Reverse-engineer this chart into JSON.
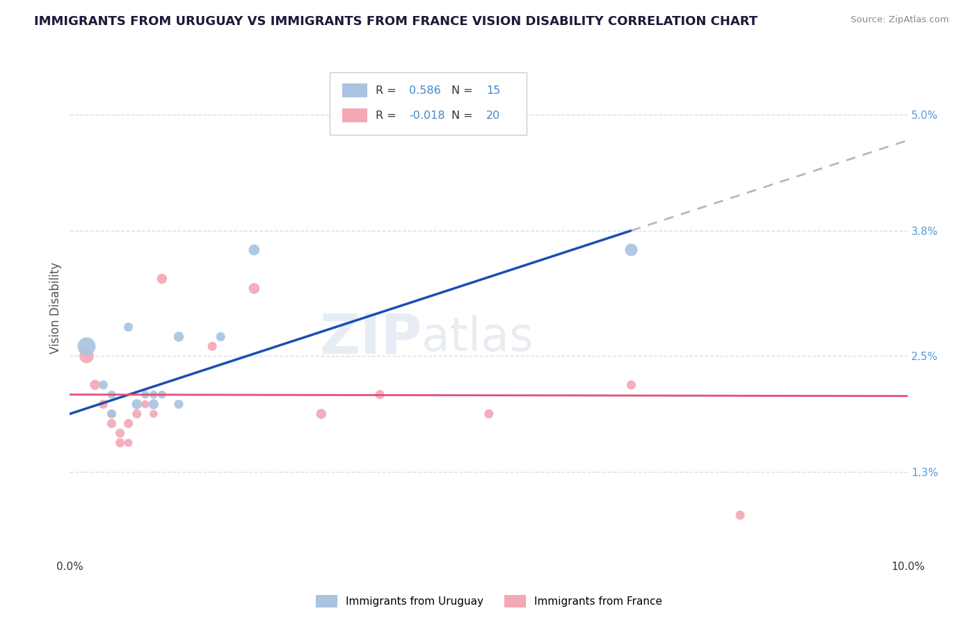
{
  "title": "IMMIGRANTS FROM URUGUAY VS IMMIGRANTS FROM FRANCE VISION DISABILITY CORRELATION CHART",
  "source": "Source: ZipAtlas.com",
  "ylabel": "Vision Disability",
  "xlim": [
    0.0,
    0.1
  ],
  "ylim": [
    0.004,
    0.056
  ],
  "yticks": [
    0.013,
    0.025,
    0.038,
    0.05
  ],
  "ytick_labels": [
    "1.3%",
    "2.5%",
    "3.8%",
    "5.0%"
  ],
  "xticks": [
    0.0,
    0.02,
    0.04,
    0.06,
    0.08,
    0.1
  ],
  "xtick_labels": [
    "0.0%",
    "",
    "",
    "",
    "",
    "10.0%"
  ],
  "watermark_zip": "ZIP",
  "watermark_atlas": "atlas",
  "uruguay_R": 0.586,
  "uruguay_N": 15,
  "france_R": -0.018,
  "france_N": 20,
  "uruguay_color": "#a8c4e0",
  "france_color": "#f4a7b5",
  "uruguay_line_color": "#1a4db5",
  "france_line_color": "#e0507a",
  "trend_ext_color": "#b0b8cc",
  "background_color": "#ffffff",
  "grid_color": "#d8dde8",
  "uruguay_points": [
    [
      0.002,
      0.026
    ],
    [
      0.004,
      0.022
    ],
    [
      0.005,
      0.021
    ],
    [
      0.005,
      0.019
    ],
    [
      0.007,
      0.028
    ],
    [
      0.008,
      0.02
    ],
    [
      0.009,
      0.021
    ],
    [
      0.01,
      0.021
    ],
    [
      0.01,
      0.02
    ],
    [
      0.011,
      0.021
    ],
    [
      0.013,
      0.027
    ],
    [
      0.013,
      0.02
    ],
    [
      0.018,
      0.027
    ],
    [
      0.022,
      0.036
    ],
    [
      0.067,
      0.036
    ]
  ],
  "uruguay_sizes": [
    350,
    90,
    70,
    70,
    90,
    110,
    70,
    70,
    110,
    70,
    110,
    90,
    90,
    130,
    170
  ],
  "france_points": [
    [
      0.002,
      0.025
    ],
    [
      0.003,
      0.022
    ],
    [
      0.004,
      0.02
    ],
    [
      0.005,
      0.019
    ],
    [
      0.005,
      0.018
    ],
    [
      0.006,
      0.017
    ],
    [
      0.006,
      0.016
    ],
    [
      0.007,
      0.018
    ],
    [
      0.007,
      0.016
    ],
    [
      0.008,
      0.019
    ],
    [
      0.009,
      0.02
    ],
    [
      0.01,
      0.019
    ],
    [
      0.011,
      0.033
    ],
    [
      0.017,
      0.026
    ],
    [
      0.022,
      0.032
    ],
    [
      0.03,
      0.019
    ],
    [
      0.037,
      0.021
    ],
    [
      0.05,
      0.019
    ],
    [
      0.067,
      0.022
    ],
    [
      0.08,
      0.0085
    ]
  ],
  "france_sizes": [
    220,
    110,
    90,
    90,
    90,
    90,
    90,
    90,
    70,
    90,
    70,
    70,
    110,
    90,
    130,
    110,
    90,
    90,
    90,
    90
  ],
  "uruguay_slope": 0.2836,
  "uruguay_intercept": 0.019,
  "france_slope": -0.0015,
  "france_intercept": 0.021,
  "trend_break_x": 0.067
}
